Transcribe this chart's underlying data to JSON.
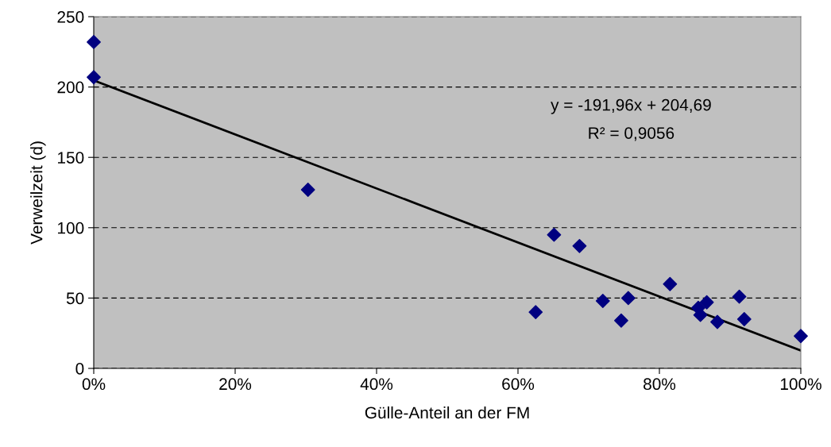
{
  "chart_data": {
    "type": "scatter",
    "xlabel": "Gülle-Anteil an der FM",
    "ylabel": "Verweilzeit (d)",
    "xlim": [
      0,
      100
    ],
    "ylim": [
      0,
      250
    ],
    "xticks": [
      {
        "value": 0,
        "label": "0%"
      },
      {
        "value": 20,
        "label": "20%"
      },
      {
        "value": 40,
        "label": "40%"
      },
      {
        "value": 60,
        "label": "60%"
      },
      {
        "value": 80,
        "label": "80%"
      },
      {
        "value": 100,
        "label": "100%"
      }
    ],
    "yticks": [
      0,
      50,
      100,
      150,
      200,
      250
    ],
    "grid": "y",
    "marker": "diamond",
    "legend": false,
    "annotations": [
      "y = -191,96x + 204,69",
      "R² = 0,9056"
    ],
    "series": [
      {
        "color": "#000080",
        "x": [
          0,
          0,
          30.3,
          62.5,
          65.1,
          68.7,
          72.0,
          74.6,
          75.6,
          81.5,
          85.5,
          85.8,
          86.7,
          88.2,
          91.3,
          92.0,
          100
        ],
        "values": [
          232,
          207,
          127,
          40,
          95,
          87,
          48,
          34,
          50,
          60,
          43,
          38,
          47,
          33,
          51,
          35,
          23
        ]
      },
      {
        "type": "line",
        "color": "#000000",
        "line_style": "solid",
        "marker": "none",
        "x": [
          0,
          100
        ],
        "values": [
          204.7,
          12.7
        ]
      }
    ]
  }
}
